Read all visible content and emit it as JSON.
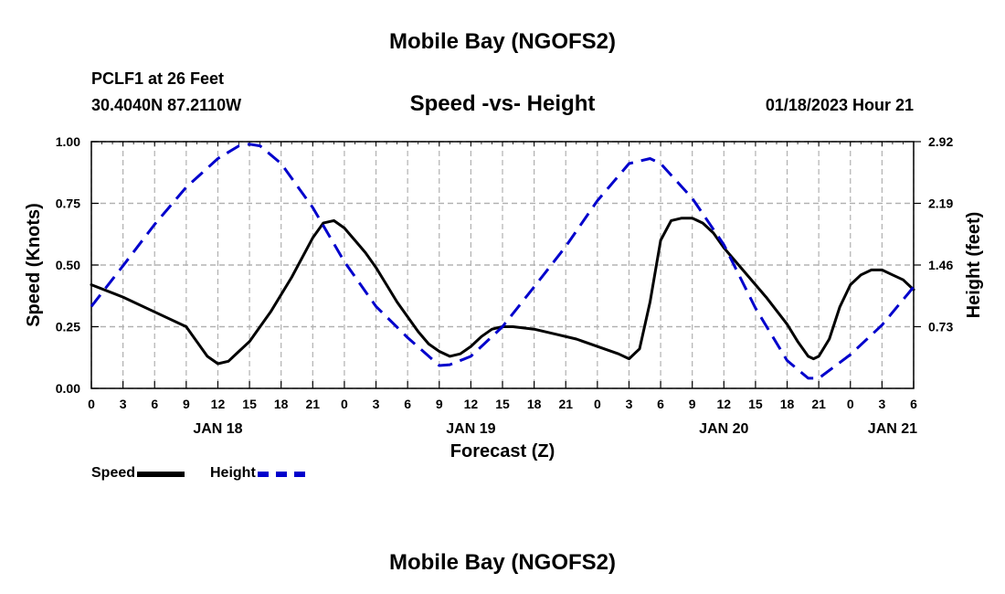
{
  "header": {
    "title_top": "Mobile Bay (NGOFS2)",
    "station": "PCLF1 at 26 Feet",
    "coords": "30.4040N  87.2110W",
    "subtitle": "Speed -vs- Height",
    "datetime": "01/18/2023 Hour 21",
    "title_bottom": "Mobile Bay (NGOFS2)"
  },
  "legend": {
    "speed_label": "Speed",
    "height_label": "Height"
  },
  "colors": {
    "speed": "#000000",
    "height": "#0000cc",
    "grid": "#b0b0b0"
  },
  "chart_data": {
    "type": "line",
    "title": "Speed -vs- Height",
    "xlabel": "Forecast (Z)",
    "ylabel": "Speed (Knots)",
    "y2label": "Height (feet)",
    "xlim": [
      0,
      78
    ],
    "ylim": [
      0,
      1.0
    ],
    "y2lim": [
      0,
      2.92
    ],
    "grid": true,
    "x_ticks": [
      {
        "x": 0,
        "label": "0"
      },
      {
        "x": 3,
        "label": "3"
      },
      {
        "x": 6,
        "label": "6"
      },
      {
        "x": 9,
        "label": "9"
      },
      {
        "x": 12,
        "label": "12"
      },
      {
        "x": 15,
        "label": "15"
      },
      {
        "x": 18,
        "label": "18"
      },
      {
        "x": 21,
        "label": "21"
      },
      {
        "x": 24,
        "label": "0"
      },
      {
        "x": 27,
        "label": "3"
      },
      {
        "x": 30,
        "label": "6"
      },
      {
        "x": 33,
        "label": "9"
      },
      {
        "x": 36,
        "label": "12"
      },
      {
        "x": 39,
        "label": "15"
      },
      {
        "x": 42,
        "label": "18"
      },
      {
        "x": 45,
        "label": "21"
      },
      {
        "x": 48,
        "label": "0"
      },
      {
        "x": 51,
        "label": "3"
      },
      {
        "x": 54,
        "label": "6"
      },
      {
        "x": 57,
        "label": "9"
      },
      {
        "x": 60,
        "label": "12"
      },
      {
        "x": 63,
        "label": "15"
      },
      {
        "x": 66,
        "label": "18"
      },
      {
        "x": 69,
        "label": "21"
      },
      {
        "x": 72,
        "label": "0"
      },
      {
        "x": 75,
        "label": "3"
      },
      {
        "x": 78,
        "label": "6"
      }
    ],
    "date_labels": [
      {
        "x": 12,
        "label": "JAN 18"
      },
      {
        "x": 36,
        "label": "JAN 19"
      },
      {
        "x": 60,
        "label": "JAN 20"
      },
      {
        "x": 76,
        "label": "JAN 21"
      }
    ],
    "y_ticks": [
      {
        "v": 0.0,
        "label": "0.00"
      },
      {
        "v": 0.25,
        "label": "0.25"
      },
      {
        "v": 0.5,
        "label": "0.50"
      },
      {
        "v": 0.75,
        "label": "0.75"
      },
      {
        "v": 1.0,
        "label": "1.00"
      }
    ],
    "y2_ticks": [
      {
        "v": 0.73,
        "label": "0.73"
      },
      {
        "v": 1.46,
        "label": "1.46"
      },
      {
        "v": 2.19,
        "label": "2.19"
      },
      {
        "v": 2.92,
        "label": "2.92"
      }
    ],
    "series": [
      {
        "name": "Speed",
        "axis": "left",
        "style": "solid",
        "points": [
          [
            0,
            0.42
          ],
          [
            3,
            0.37
          ],
          [
            6,
            0.31
          ],
          [
            9,
            0.25
          ],
          [
            10,
            0.19
          ],
          [
            11,
            0.13
          ],
          [
            12,
            0.1
          ],
          [
            13,
            0.11
          ],
          [
            14,
            0.15
          ],
          [
            15,
            0.19
          ],
          [
            17,
            0.31
          ],
          [
            19,
            0.45
          ],
          [
            21,
            0.61
          ],
          [
            22,
            0.67
          ],
          [
            23,
            0.68
          ],
          [
            24,
            0.65
          ],
          [
            25,
            0.6
          ],
          [
            26,
            0.55
          ],
          [
            27,
            0.49
          ],
          [
            28,
            0.42
          ],
          [
            29,
            0.35
          ],
          [
            30,
            0.29
          ],
          [
            31,
            0.23
          ],
          [
            32,
            0.18
          ],
          [
            33,
            0.15
          ],
          [
            34,
            0.13
          ],
          [
            35,
            0.14
          ],
          [
            36,
            0.17
          ],
          [
            37,
            0.21
          ],
          [
            38,
            0.24
          ],
          [
            39,
            0.25
          ],
          [
            40,
            0.25
          ],
          [
            42,
            0.24
          ],
          [
            44,
            0.22
          ],
          [
            46,
            0.2
          ],
          [
            48,
            0.17
          ],
          [
            50,
            0.14
          ],
          [
            51,
            0.12
          ],
          [
            52,
            0.16
          ],
          [
            53,
            0.35
          ],
          [
            54,
            0.6
          ],
          [
            55,
            0.68
          ],
          [
            56,
            0.69
          ],
          [
            57,
            0.69
          ],
          [
            58,
            0.67
          ],
          [
            59,
            0.63
          ],
          [
            60,
            0.57
          ],
          [
            62,
            0.47
          ],
          [
            64,
            0.37
          ],
          [
            66,
            0.26
          ],
          [
            67,
            0.19
          ],
          [
            68,
            0.13
          ],
          [
            68.5,
            0.12
          ],
          [
            69,
            0.13
          ],
          [
            70,
            0.2
          ],
          [
            71,
            0.33
          ],
          [
            72,
            0.42
          ],
          [
            73,
            0.46
          ],
          [
            74,
            0.48
          ],
          [
            75,
            0.48
          ],
          [
            76,
            0.46
          ],
          [
            77,
            0.44
          ],
          [
            78,
            0.4
          ]
        ]
      },
      {
        "name": "Height",
        "axis": "right",
        "style": "dashed",
        "points": [
          [
            0,
            0.97
          ],
          [
            3,
            1.45
          ],
          [
            6,
            1.94
          ],
          [
            9,
            2.38
          ],
          [
            12,
            2.72
          ],
          [
            14,
            2.87
          ],
          [
            15,
            2.89
          ],
          [
            16,
            2.87
          ],
          [
            18,
            2.66
          ],
          [
            21,
            2.14
          ],
          [
            24,
            1.5
          ],
          [
            27,
            0.97
          ],
          [
            30,
            0.6
          ],
          [
            33,
            0.27
          ],
          [
            34,
            0.28
          ],
          [
            36,
            0.38
          ],
          [
            39,
            0.73
          ],
          [
            42,
            1.2
          ],
          [
            45,
            1.68
          ],
          [
            48,
            2.22
          ],
          [
            51,
            2.66
          ],
          [
            53,
            2.72
          ],
          [
            54,
            2.66
          ],
          [
            57,
            2.25
          ],
          [
            60,
            1.7
          ],
          [
            63,
            0.95
          ],
          [
            66,
            0.33
          ],
          [
            68,
            0.12
          ],
          [
            69,
            0.12
          ],
          [
            72,
            0.4
          ],
          [
            75,
            0.75
          ],
          [
            78,
            1.2
          ]
        ]
      }
    ]
  }
}
